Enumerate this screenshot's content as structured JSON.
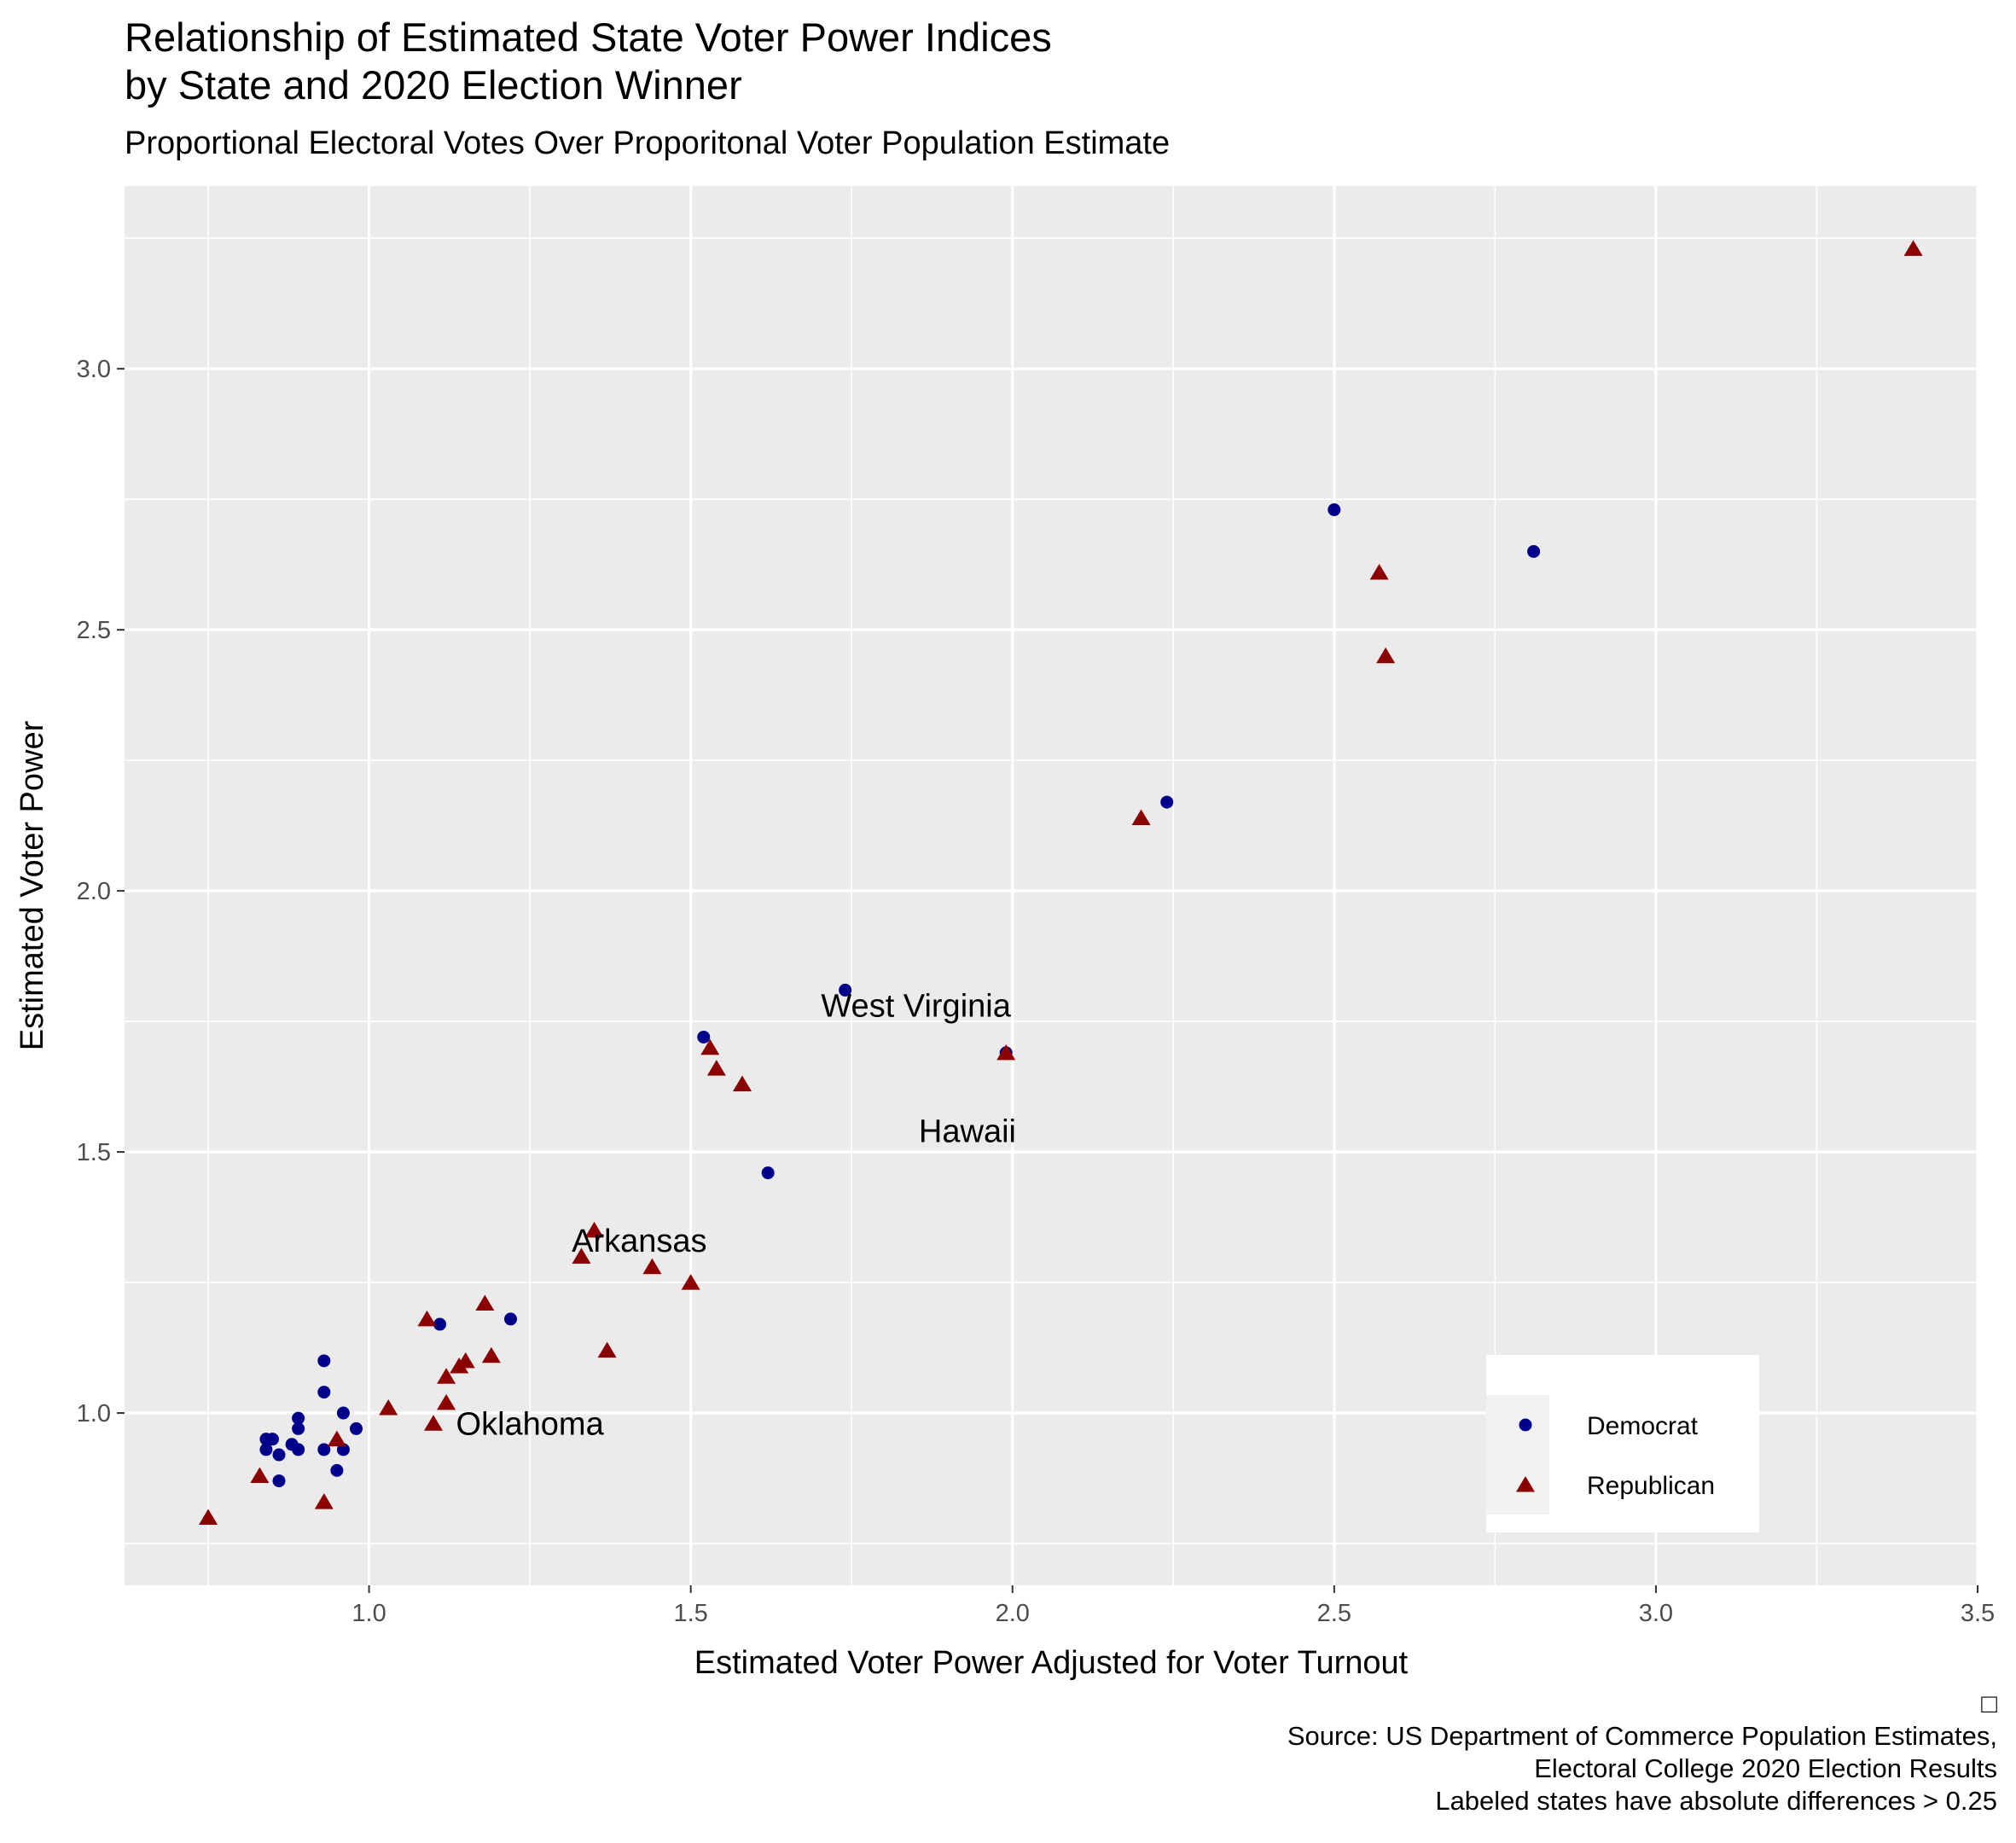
{
  "title_line1": "Relationship of Estimated State Voter Power Indices",
  "title_line2": "by State and 2020 Election Winner",
  "subtitle": "Proportional Electoral Votes Over Proporitonal Voter Population Estimate",
  "caption_mark": "□",
  "caption_lines": [
    "Source: US Department of Commerce Population Estimates,",
    "Electoral College 2020 Election Results",
    "Labeled states have absolute differences > 0.25"
  ],
  "colors": {
    "panel_bg": "#EBEBEB",
    "grid": "#FFFFFF",
    "democrat": "#00008B",
    "republican": "#8B0000",
    "axis_text": "#4D4D4D"
  },
  "chart_data": {
    "type": "scatter",
    "xlabel": "Estimated Voter Power Adjusted for Voter Turnout",
    "ylabel": "Estimated Voter Power",
    "xlim": [
      0.62,
      3.5
    ],
    "ylim": [
      0.67,
      3.35
    ],
    "x_ticks": [
      1.0,
      1.5,
      2.0,
      2.5,
      3.0,
      3.5
    ],
    "x_tick_labels": [
      "1.0",
      "1.5",
      "2.0",
      "2.5",
      "3.0",
      "3.5"
    ],
    "y_ticks": [
      1.0,
      1.5,
      2.0,
      2.5,
      3.0
    ],
    "y_tick_labels": [
      "1.0",
      "1.5",
      "2.0",
      "2.5",
      "3.0"
    ],
    "grid": true,
    "legend": {
      "placement": "bottom-right",
      "title": ""
    },
    "series": [
      {
        "name": "Democrat",
        "shape": "circle",
        "points": [
          [
            0.84,
            0.93
          ],
          [
            0.84,
            0.95
          ],
          [
            0.85,
            0.95
          ],
          [
            0.86,
            0.92
          ],
          [
            0.86,
            0.87
          ],
          [
            0.88,
            0.94
          ],
          [
            0.89,
            0.93
          ],
          [
            0.89,
            0.97
          ],
          [
            0.89,
            0.99
          ],
          [
            0.93,
            1.1
          ],
          [
            0.93,
            1.04
          ],
          [
            0.93,
            0.93
          ],
          [
            0.95,
            0.89
          ],
          [
            0.96,
            1.0
          ],
          [
            0.96,
            0.93
          ],
          [
            0.98,
            0.97
          ],
          [
            1.11,
            1.17
          ],
          [
            1.22,
            1.18
          ],
          [
            1.52,
            1.72
          ],
          [
            1.62,
            1.46
          ],
          [
            1.74,
            1.81
          ],
          [
            1.99,
            1.69
          ],
          [
            2.24,
            2.17
          ],
          [
            2.5,
            2.73
          ],
          [
            2.81,
            2.65
          ]
        ]
      },
      {
        "name": "Republican",
        "shape": "triangle",
        "points": [
          [
            0.75,
            0.8
          ],
          [
            0.83,
            0.88
          ],
          [
            0.93,
            0.83
          ],
          [
            0.95,
            0.95
          ],
          [
            1.03,
            1.01
          ],
          [
            1.09,
            1.18
          ],
          [
            1.1,
            0.98
          ],
          [
            1.12,
            1.07
          ],
          [
            1.12,
            1.02
          ],
          [
            1.14,
            1.09
          ],
          [
            1.15,
            1.1
          ],
          [
            1.18,
            1.21
          ],
          [
            1.19,
            1.11
          ],
          [
            1.33,
            1.3
          ],
          [
            1.35,
            1.35
          ],
          [
            1.37,
            1.12
          ],
          [
            1.44,
            1.28
          ],
          [
            1.5,
            1.25
          ],
          [
            1.53,
            1.7
          ],
          [
            1.54,
            1.66
          ],
          [
            1.58,
            1.63
          ],
          [
            1.99,
            1.69
          ],
          [
            2.2,
            2.14
          ],
          [
            2.57,
            2.61
          ],
          [
            2.58,
            2.45
          ],
          [
            3.4,
            3.23
          ]
        ]
      }
    ],
    "annotations": [
      {
        "text": "West Virginia",
        "x": 1.85,
        "y": 1.78
      },
      {
        "text": "Hawaii",
        "x": 1.93,
        "y": 1.54
      },
      {
        "text": "Arkansas",
        "x": 1.42,
        "y": 1.33
      },
      {
        "text": "Oklahoma",
        "x": 1.25,
        "y": 0.98
      }
    ]
  }
}
